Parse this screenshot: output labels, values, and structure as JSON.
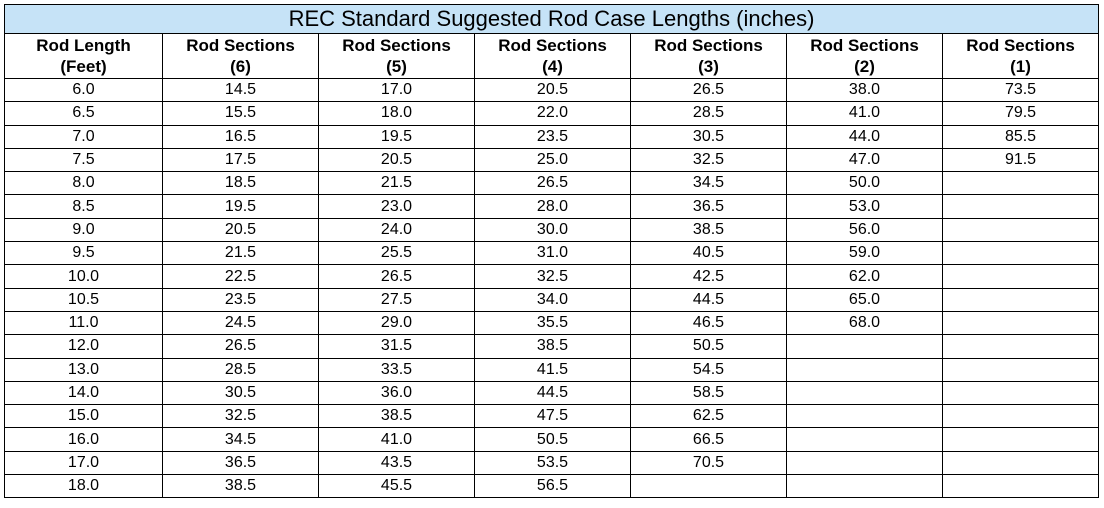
{
  "title": "REC Standard Suggested Rod Case Lengths (inches)",
  "headers": [
    {
      "line1": "Rod Length",
      "line2": "(Feet)"
    },
    {
      "line1": "Rod Sections",
      "line2": "(6)"
    },
    {
      "line1": "Rod Sections",
      "line2": "(5)"
    },
    {
      "line1": "Rod Sections",
      "line2": "(4)"
    },
    {
      "line1": "Rod Sections",
      "line2": "(3)"
    },
    {
      "line1": "Rod Sections",
      "line2": "(2)"
    },
    {
      "line1": "Rod Sections",
      "line2": "(1)"
    }
  ],
  "rows": [
    [
      "6.0",
      "14.5",
      "17.0",
      "20.5",
      "26.5",
      "38.0",
      "73.5"
    ],
    [
      "6.5",
      "15.5",
      "18.0",
      "22.0",
      "28.5",
      "41.0",
      "79.5"
    ],
    [
      "7.0",
      "16.5",
      "19.5",
      "23.5",
      "30.5",
      "44.0",
      "85.5"
    ],
    [
      "7.5",
      "17.5",
      "20.5",
      "25.0",
      "32.5",
      "47.0",
      "91.5"
    ],
    [
      "8.0",
      "18.5",
      "21.5",
      "26.5",
      "34.5",
      "50.0",
      ""
    ],
    [
      "8.5",
      "19.5",
      "23.0",
      "28.0",
      "36.5",
      "53.0",
      ""
    ],
    [
      "9.0",
      "20.5",
      "24.0",
      "30.0",
      "38.5",
      "56.0",
      ""
    ],
    [
      "9.5",
      "21.5",
      "25.5",
      "31.0",
      "40.5",
      "59.0",
      ""
    ],
    [
      "10.0",
      "22.5",
      "26.5",
      "32.5",
      "42.5",
      "62.0",
      ""
    ],
    [
      "10.5",
      "23.5",
      "27.5",
      "34.0",
      "44.5",
      "65.0",
      ""
    ],
    [
      "11.0",
      "24.5",
      "29.0",
      "35.5",
      "46.5",
      "68.0",
      ""
    ],
    [
      "12.0",
      "26.5",
      "31.5",
      "38.5",
      "50.5",
      "",
      ""
    ],
    [
      "13.0",
      "28.5",
      "33.5",
      "41.5",
      "54.5",
      "",
      ""
    ],
    [
      "14.0",
      "30.5",
      "36.0",
      "44.5",
      "58.5",
      "",
      ""
    ],
    [
      "15.0",
      "32.5",
      "38.5",
      "47.5",
      "62.5",
      "",
      ""
    ],
    [
      "16.0",
      "34.5",
      "41.0",
      "50.5",
      "66.5",
      "",
      ""
    ],
    [
      "17.0",
      "36.5",
      "43.5",
      "53.5",
      "70.5",
      "",
      ""
    ],
    [
      "18.0",
      "38.5",
      "45.5",
      "56.5",
      "",
      "",
      ""
    ]
  ],
  "colors": {
    "title_background": "#c6e3f7",
    "border": "#000000"
  }
}
